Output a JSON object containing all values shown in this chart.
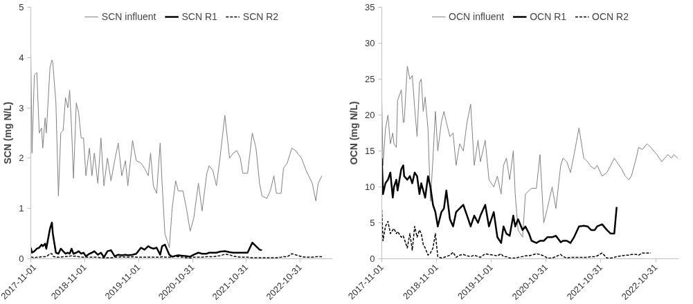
{
  "chart_data": [
    {
      "type": "line",
      "ylabel": "SCN (mg N/L)",
      "legend": "top",
      "grid": false,
      "xlim": [
        "2017-11-01",
        "2023-06-07"
      ],
      "ylim": [
        0,
        5
      ],
      "yticks": [
        0,
        1,
        2,
        3,
        4,
        5
      ],
      "xticks": [
        "2017-11-01",
        "2018-11-01",
        "2019-11-01",
        "2020-10-31",
        "2021-10-31",
        "2022-10-31"
      ],
      "x": [
        "2017-11-01",
        "2017-11-09",
        "2017-11-25",
        "2017-12-12",
        "2017-12-28",
        "2018-01-13",
        "2018-01-21",
        "2018-02-06",
        "2018-02-14",
        "2018-03-11",
        "2018-03-24",
        "2018-03-30",
        "2018-04-20",
        "2018-05-07",
        "2018-05-23",
        "2018-06-08",
        "2018-06-24",
        "2018-07-10",
        "2018-07-22",
        "2018-08-04",
        "2018-08-17",
        "2018-09-05",
        "2018-09-21",
        "2018-10-08",
        "2018-10-24",
        "2018-11-09",
        "2018-12-03",
        "2018-12-20",
        "2019-01-05",
        "2019-01-29",
        "2019-02-19",
        "2019-03-11",
        "2019-04-04",
        "2019-04-28",
        "2019-05-23",
        "2019-06-16",
        "2019-07-10",
        "2019-08-04",
        "2019-08-20",
        "2019-09-21",
        "2019-10-16",
        "2019-11-17",
        "2019-12-11",
        "2020-01-05",
        "2020-01-21",
        "2020-02-09",
        "2020-03-02",
        "2020-03-26",
        "2020-04-08",
        "2020-04-27",
        "2020-05-27",
        "2020-06-15",
        "2020-07-09",
        "2020-07-26",
        "2020-08-27",
        "2020-09-20",
        "2020-10-15",
        "2020-11-08",
        "2020-12-10",
        "2021-01-04",
        "2021-02-05",
        "2021-02-21",
        "2021-03-18",
        "2021-04-11",
        "2021-05-05",
        "2021-06-07",
        "2021-07-09",
        "2021-08-03",
        "2021-08-27",
        "2021-09-20",
        "2021-10-06",
        "2021-11-08",
        "2021-12-10",
        "2022-01-04",
        "2022-01-28",
        "2022-02-13",
        "2022-03-18",
        "2022-04-11",
        "2022-05-05",
        "2022-05-22",
        "2022-06-23",
        "2022-07-09",
        "2022-08-03",
        "2022-09-04",
        "2022-09-28",
        "2022-11-08",
        "2022-12-10",
        "2023-01-20",
        "2023-02-13",
        "2023-03-01",
        "2023-03-26"
      ],
      "series": [
        {
          "name": "SCN influent",
          "color": "#808080",
          "line_style": "solid",
          "values": [
            4.1,
            2.1,
            3.65,
            3.7,
            2.5,
            2.6,
            2.2,
            2.8,
            2.5,
            3.8,
            3.95,
            3.9,
            3.1,
            1.25,
            2.5,
            2.55,
            3.2,
            3.0,
            3.35,
            2.6,
            1.6,
            3.1,
            2.9,
            2.4,
            2.4,
            1.65,
            2.2,
            1.65,
            2.1,
            1.5,
            2.4,
            1.45,
            2.0,
            1.55,
            1.95,
            2.3,
            1.65,
            1.95,
            1.45,
            2.35,
            1.95,
            1.9,
            1.8,
            1.65,
            2.1,
            1.45,
            1.3,
            2.3,
            1.5,
            0.5,
            0.22,
            1.0,
            1.55,
            1.35,
            1.35,
            1.0,
            0.55,
            0.8,
            1.5,
            0.95,
            1.7,
            1.85,
            1.75,
            1.45,
            2.0,
            2.85,
            2.0,
            2.1,
            2.15,
            2.0,
            1.7,
            1.7,
            2.5,
            2.2,
            1.5,
            1.25,
            1.2,
            1.35,
            1.65,
            1.3,
            1.3,
            1.8,
            1.9,
            2.2,
            2.15,
            2.0,
            1.75,
            1.5,
            1.15,
            1.5,
            1.65
          ]
        },
        {
          "name": "SCN R1",
          "color": "#000000",
          "line_style": "solid",
          "values": [
            0.22,
            0.12,
            0.15,
            0.2,
            0.22,
            0.28,
            0.25,
            0.3,
            0.2,
            0.6,
            0.72,
            0.5,
            0.12,
            0.1,
            0.2,
            0.15,
            0.1,
            0.12,
            0.1,
            0.2,
            0.1,
            0.12,
            0.15,
            0.1,
            0.12,
            0.05,
            0.1,
            0.12,
            0.15,
            0.08,
            0.12,
            0.03,
            0.15,
            0.17,
            0.05,
            0.08,
            0.07,
            0.08,
            0.07,
            0.08,
            0.1,
            0.22,
            0.18,
            0.25,
            0.22,
            0.2,
            0.22,
            0.08,
            0.25,
            0.28,
            0.08,
            0.04,
            0.06,
            0.07,
            0.06,
            0.05,
            0.04,
            0.08,
            0.12,
            0.1,
            0.1,
            0.12,
            0.12,
            0.12,
            0.14,
            0.15,
            0.13,
            0.12,
            0.12,
            0.12,
            0.12,
            0.12,
            0.32,
            0.25,
            0.18,
            0.17,
            null,
            null,
            null,
            null,
            null,
            null,
            null,
            null,
            null,
            null,
            null,
            null,
            null,
            null,
            null
          ]
        },
        {
          "name": "SCN R2",
          "color": "#000000",
          "line_style": "dashed",
          "values": [
            0.03,
            0.03,
            0.02,
            0.03,
            0.03,
            0.04,
            0.04,
            0.04,
            0.04,
            0.1,
            0.1,
            0.05,
            0.03,
            0.03,
            0.03,
            0.04,
            0.04,
            0.05,
            0.05,
            0.06,
            0.05,
            0.05,
            0.04,
            0.03,
            0.03,
            0.03,
            0.03,
            0.03,
            0.03,
            0.03,
            0.02,
            0.02,
            0.02,
            0.02,
            0.03,
            0.03,
            0.04,
            0.03,
            0.03,
            0.04,
            0.03,
            0.03,
            0.03,
            0.03,
            0.03,
            0.03,
            0.03,
            0.03,
            0.04,
            0.03,
            0.03,
            0.04,
            0.04,
            0.04,
            0.03,
            0.02,
            0.01,
            0.03,
            0.03,
            0.03,
            0.04,
            0.04,
            0.04,
            0.05,
            0.06,
            0.09,
            0.08,
            0.05,
            0.04,
            0.03,
            0.03,
            0.03,
            0.02,
            0.02,
            0.02,
            0.02,
            0.02,
            0.02,
            0.02,
            0.02,
            0.03,
            0.04,
            0.04,
            0.1,
            0.08,
            0.04,
            0.03,
            0.03,
            0.04,
            0.04,
            0.04
          ]
        }
      ]
    },
    {
      "type": "line",
      "ylabel": "OCN (mg N/L)",
      "legend": "top",
      "grid": false,
      "xlim": [
        "2017-11-01",
        "2023-04-03"
      ],
      "ylim": [
        0,
        35
      ],
      "yticks": [
        0,
        5,
        10,
        15,
        20,
        25,
        30,
        35
      ],
      "xticks": [
        "2017-11-01",
        "2018-11-01",
        "2019-11-01",
        "2020-10-31",
        "2021-10-31",
        "2022-10-31"
      ],
      "x": [
        "2017-11-01",
        "2017-11-09",
        "2017-11-25",
        "2017-12-12",
        "2017-12-28",
        "2018-01-13",
        "2018-01-21",
        "2018-02-06",
        "2018-02-14",
        "2018-03-11",
        "2018-03-24",
        "2018-03-30",
        "2018-04-20",
        "2018-05-07",
        "2018-05-23",
        "2018-06-08",
        "2018-06-24",
        "2018-07-10",
        "2018-07-22",
        "2018-08-04",
        "2018-08-17",
        "2018-09-05",
        "2018-09-21",
        "2018-10-08",
        "2018-10-24",
        "2018-11-09",
        "2018-12-03",
        "2018-12-20",
        "2019-01-05",
        "2019-01-29",
        "2019-02-19",
        "2019-03-11",
        "2019-04-04",
        "2019-04-28",
        "2019-05-23",
        "2019-06-16",
        "2019-07-10",
        "2019-08-04",
        "2019-08-20",
        "2019-09-21",
        "2019-10-16",
        "2019-11-17",
        "2019-12-11",
        "2020-01-05",
        "2020-01-21",
        "2020-02-09",
        "2020-03-02",
        "2020-03-26",
        "2020-04-08",
        "2020-04-27",
        "2020-05-27",
        "2020-06-15",
        "2020-07-09",
        "2020-07-26",
        "2020-08-27",
        "2020-09-20",
        "2020-10-15",
        "2020-11-08",
        "2020-12-10",
        "2021-01-04",
        "2021-02-05",
        "2021-02-21",
        "2021-03-18",
        "2021-04-11",
        "2021-05-05",
        "2021-06-07",
        "2021-07-09",
        "2021-08-03",
        "2021-08-27",
        "2021-09-20",
        "2021-10-06",
        "2021-11-08",
        "2021-12-10",
        "2022-01-04",
        "2022-01-28",
        "2022-02-13",
        "2022-03-18",
        "2022-04-11",
        "2022-05-05",
        "2022-05-22",
        "2022-06-23",
        "2022-07-09",
        "2022-08-03",
        "2022-09-04",
        "2022-09-28",
        "2022-11-08",
        "2022-12-10",
        "2023-01-20",
        "2023-02-13",
        "2023-03-01",
        "2023-03-26"
      ],
      "series": [
        {
          "name": "OCN influent",
          "color": "#808080",
          "line_style": "solid",
          "values": [
            22,
            13,
            18,
            20,
            16,
            17.5,
            16,
            15.5,
            22,
            23.5,
            19,
            19,
            26.8,
            25,
            25.5,
            21,
            17,
            24.5,
            25,
            20.5,
            22.5,
            18,
            8,
            14,
            20.5,
            15,
            19,
            20.5,
            19,
            17,
            17.5,
            13,
            16,
            15,
            19,
            21.5,
            13,
            16.5,
            13.5,
            16.5,
            11,
            10,
            11.5,
            9,
            13,
            14,
            11,
            15,
            9,
            4,
            3,
            9,
            9.5,
            9.8,
            9.8,
            14.5,
            5,
            7,
            10,
            7,
            13,
            14,
            13.5,
            12,
            14.5,
            18.2,
            14,
            13.5,
            12.8,
            12.5,
            13,
            11.5,
            12,
            13,
            14,
            13.5,
            12.5,
            11.5,
            11,
            11.5,
            14,
            15.5,
            15.2,
            16,
            15.5,
            14.5,
            13.5,
            14.5,
            14,
            14.5,
            14
          ]
        },
        {
          "name": "OCN R1",
          "color": "#000000",
          "line_style": "solid",
          "values": [
            14,
            9,
            10.5,
            11,
            12,
            8.5,
            10,
            11,
            9.5,
            12.5,
            13,
            11.5,
            11,
            11.5,
            10.5,
            12,
            11.5,
            9,
            10.5,
            9.5,
            8.5,
            11.5,
            10,
            7.5,
            6.5,
            4.5,
            6.5,
            7,
            9.5,
            5.5,
            4.5,
            6.5,
            7,
            7.5,
            6,
            4.5,
            6,
            5,
            6,
            7.5,
            4.5,
            6.5,
            3,
            2.2,
            4.5,
            3.5,
            3.2,
            6,
            4.5,
            5.5,
            4,
            4.5,
            3.5,
            2.5,
            2.2,
            2.5,
            2.5,
            3,
            3,
            3.2,
            2.3,
            2.5,
            2.5,
            2.2,
            3,
            4.5,
            4.6,
            4.5,
            4,
            4,
            4.5,
            4.8,
            4,
            3.5,
            3.5,
            7.2,
            null,
            null,
            null,
            null,
            null,
            null,
            null,
            null,
            null,
            null,
            null,
            null,
            null,
            null,
            null
          ]
        },
        {
          "name": "OCN R2",
          "color": "#000000",
          "line_style": "dashed",
          "values": [
            6.8,
            2.5,
            4.5,
            5.2,
            3.5,
            4,
            4.2,
            3.5,
            3.8,
            3,
            3.2,
            2.8,
            1.5,
            3.5,
            1.2,
            4.5,
            3,
            4,
            3.5,
            2,
            1.5,
            0.5,
            0.8,
            1.5,
            3.5,
            0.3,
            0.1,
            0.2,
            0.3,
            0.5,
            0.9,
            0.2,
            0.5,
            0.6,
            0.4,
            0.3,
            0.5,
            0.3,
            0.2,
            0.7,
            0.6,
            0.5,
            0.4,
            0.7,
            0.3,
            0.3,
            0.1,
            0.1,
            0.1,
            0.2,
            0.3,
            0.4,
            0.4,
            0.5,
            0.7,
            0.6,
            0.4,
            0.1,
            0.1,
            0.3,
            0.6,
            0.3,
            0.1,
            0.2,
            0.2,
            0.2,
            0.2,
            0.2,
            0.3,
            0.3,
            0.4,
            0.8,
            0.1,
            0.1,
            0.2,
            0.3,
            0.4,
            0.5,
            0.5,
            0.6,
            0.6,
            0.5,
            0.8,
            0.8,
            0.8,
            null,
            null,
            null,
            null,
            null,
            null
          ]
        }
      ]
    }
  ]
}
